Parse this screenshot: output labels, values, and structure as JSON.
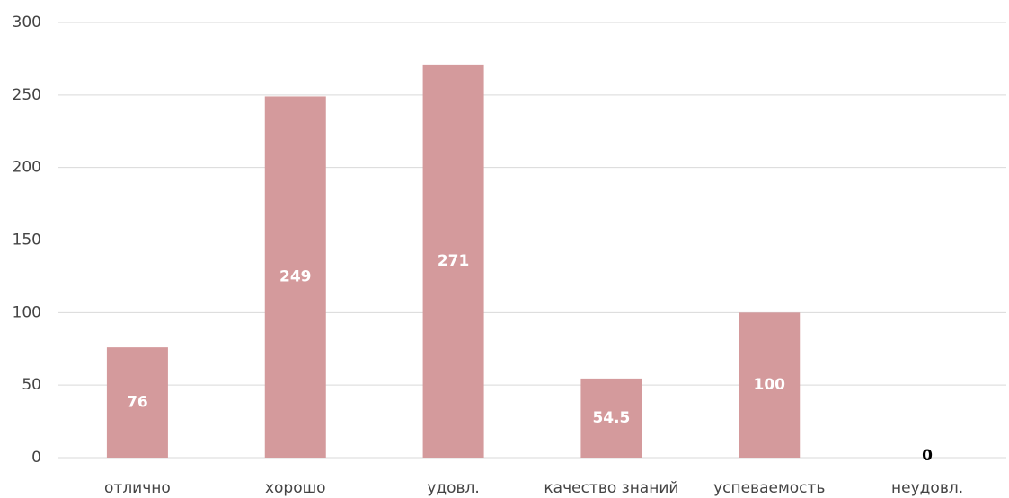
{
  "chart_data": {
    "type": "bar",
    "categories": [
      "отлично",
      "хорошо",
      "удовл.",
      "качество знаний",
      "успеваемость",
      "неудовл."
    ],
    "values": [
      76,
      249,
      271,
      54.5,
      100,
      0
    ],
    "color": "#d49a9c",
    "ylim": [
      0,
      300
    ],
    "yticks": [
      0,
      50,
      100,
      150,
      200,
      250,
      300
    ],
    "grid": true
  }
}
